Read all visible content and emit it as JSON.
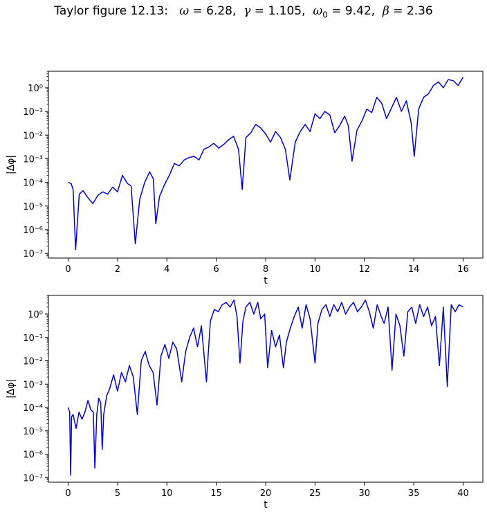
{
  "figure": {
    "title_prefix": "Taylor figure 12.13:",
    "params": [
      {
        "sym": "ω",
        "sub": "",
        "value": "6.28"
      },
      {
        "sym": "γ",
        "sub": "",
        "value": "1.105"
      },
      {
        "sym": "ω",
        "sub": "0",
        "value": "9.42"
      },
      {
        "sym": "β",
        "sub": "",
        "value": "2.36"
      }
    ]
  },
  "chart_data": [
    {
      "type": "line",
      "xlabel": "t",
      "ylabel": "|Δφ|",
      "xlim": [
        -0.8,
        16.8
      ],
      "ylim_exp": [
        -7.2,
        0.7
      ],
      "yscale": "log",
      "xticks": [
        0,
        2,
        4,
        6,
        8,
        10,
        12,
        14,
        16
      ],
      "yticks_exp": [
        -7,
        -6,
        -5,
        -4,
        -3,
        -2,
        -1,
        0
      ],
      "color": "#0000dd",
      "series": [
        {
          "x": [
            0,
            0.12,
            0.2,
            0.3,
            0.45,
            0.6,
            0.8,
            1.0,
            1.2,
            1.4,
            1.6,
            1.8,
            2.0,
            2.2,
            2.4,
            2.55,
            2.72,
            2.9,
            3.1,
            3.3,
            3.45,
            3.55,
            3.7,
            3.9,
            4.1,
            4.3,
            4.5,
            4.7,
            4.9,
            5.1,
            5.3,
            5.5,
            5.7,
            5.9,
            6.1,
            6.3,
            6.5,
            6.7,
            6.9,
            7.05,
            7.2,
            7.4,
            7.6,
            7.8,
            8.0,
            8.2,
            8.4,
            8.6,
            8.8,
            8.98,
            9.2,
            9.4,
            9.6,
            9.8,
            10.0,
            10.2,
            10.4,
            10.6,
            10.8,
            11.0,
            11.2,
            11.35,
            11.5,
            11.7,
            11.9,
            12.1,
            12.3,
            12.5,
            12.7,
            12.9,
            13.1,
            13.3,
            13.5,
            13.7,
            13.9,
            14.02,
            14.2,
            14.4,
            14.6,
            14.8,
            15.0,
            15.2,
            15.4,
            15.6,
            15.8,
            16.0
          ],
          "y_exp": [
            -4.0,
            -4.05,
            -4.3,
            -6.85,
            -4.5,
            -4.35,
            -4.65,
            -4.9,
            -4.55,
            -4.4,
            -4.5,
            -4.2,
            -4.4,
            -3.7,
            -4.05,
            -4.15,
            -6.6,
            -4.7,
            -4.0,
            -3.55,
            -3.85,
            -5.75,
            -4.6,
            -4.1,
            -3.7,
            -3.2,
            -3.3,
            -3.05,
            -2.95,
            -2.9,
            -3.05,
            -2.6,
            -2.5,
            -2.35,
            -2.55,
            -2.4,
            -2.2,
            -2.05,
            -2.6,
            -4.3,
            -2.1,
            -1.9,
            -1.55,
            -1.7,
            -1.95,
            -2.3,
            -1.85,
            -2.1,
            -2.6,
            -3.9,
            -2.3,
            -1.85,
            -1.55,
            -1.85,
            -1.1,
            -1.3,
            -1.0,
            -1.15,
            -1.9,
            -1.6,
            -1.2,
            -1.6,
            -3.1,
            -1.8,
            -1.4,
            -0.9,
            -1.05,
            -0.4,
            -0.65,
            -1.3,
            -0.85,
            -0.4,
            -1.0,
            -0.55,
            -1.5,
            -2.9,
            -0.9,
            -0.4,
            -0.25,
            0.1,
            0.25,
            0.0,
            0.35,
            0.3,
            0.1,
            0.45
          ]
        }
      ]
    },
    {
      "type": "line",
      "xlabel": "t",
      "ylabel": "|Δφ|",
      "xlim": [
        -2.0,
        42.0
      ],
      "ylim_exp": [
        -7.2,
        0.8
      ],
      "yscale": "log",
      "xticks": [
        0,
        5,
        10,
        15,
        20,
        25,
        30,
        35,
        40
      ],
      "yticks_exp": [
        -7,
        -6,
        -5,
        -4,
        -3,
        -2,
        -1,
        0
      ],
      "color": "#0000dd",
      "series": [
        {
          "x": [
            0,
            0.15,
            0.25,
            0.35,
            0.5,
            0.8,
            1.1,
            1.4,
            1.7,
            2.0,
            2.3,
            2.55,
            2.7,
            2.9,
            3.1,
            3.3,
            3.45,
            3.6,
            3.9,
            4.2,
            4.6,
            5.0,
            5.4,
            5.8,
            6.2,
            6.6,
            7.0,
            7.4,
            7.8,
            8.2,
            8.6,
            9.0,
            9.4,
            9.8,
            10.2,
            10.6,
            11.0,
            11.5,
            11.9,
            12.3,
            12.7,
            13.1,
            13.5,
            14.0,
            14.4,
            14.8,
            15.2,
            15.6,
            16.0,
            16.4,
            16.8,
            17.1,
            17.4,
            17.7,
            18.0,
            18.4,
            18.8,
            19.2,
            19.5,
            19.9,
            20.2,
            20.6,
            21.0,
            21.4,
            21.8,
            22.1,
            22.5,
            22.9,
            23.3,
            23.7,
            24.1,
            24.5,
            25.0,
            25.3,
            25.7,
            26.1,
            26.5,
            26.9,
            27.3,
            27.7,
            28.1,
            28.5,
            28.9,
            29.3,
            29.7,
            30.1,
            30.5,
            30.9,
            31.3,
            31.7,
            32.0,
            32.4,
            32.8,
            33.2,
            33.6,
            34.0,
            34.4,
            34.8,
            35.2,
            35.6,
            36.0,
            36.4,
            36.8,
            37.2,
            37.6,
            38.0,
            38.4,
            38.8,
            39.2,
            39.6,
            40.0
          ],
          "y_exp": [
            -4.0,
            -4.2,
            -6.9,
            -4.4,
            -4.3,
            -4.9,
            -4.2,
            -4.5,
            -4.2,
            -3.7,
            -4.1,
            -4.2,
            -6.6,
            -4.3,
            -3.6,
            -3.8,
            -5.8,
            -4.3,
            -3.5,
            -3.2,
            -2.6,
            -3.3,
            -2.5,
            -2.9,
            -2.2,
            -2.7,
            -4.3,
            -2.0,
            -1.6,
            -2.2,
            -2.5,
            -3.9,
            -1.8,
            -1.3,
            -1.9,
            -1.2,
            -1.5,
            -2.9,
            -1.6,
            -1.0,
            -0.6,
            -1.4,
            -0.5,
            -2.9,
            -0.3,
            0.2,
            0.1,
            0.4,
            0.5,
            0.3,
            0.6,
            -0.1,
            -2.1,
            -0.3,
            0.3,
            0.5,
            0.0,
            0.5,
            -0.2,
            0.0,
            -2.3,
            -0.7,
            -1.4,
            -0.9,
            -2.3,
            -1.2,
            -0.6,
            -0.1,
            0.3,
            -0.6,
            0.4,
            -0.2,
            -2.1,
            -0.4,
            0.2,
            0.4,
            -0.1,
            0.4,
            0.1,
            0.5,
            0.0,
            0.3,
            0.5,
            0.1,
            0.3,
            0.6,
            0.1,
            -0.6,
            0.4,
            -0.1,
            -0.4,
            0.3,
            -2.4,
            0.0,
            -0.5,
            -1.8,
            0.1,
            0.3,
            -0.4,
            0.4,
            -0.1,
            0.3,
            -0.5,
            -0.1,
            -2.2,
            0.3,
            -3.1,
            0.4,
            0.1,
            0.4,
            0.3
          ]
        }
      ]
    }
  ]
}
